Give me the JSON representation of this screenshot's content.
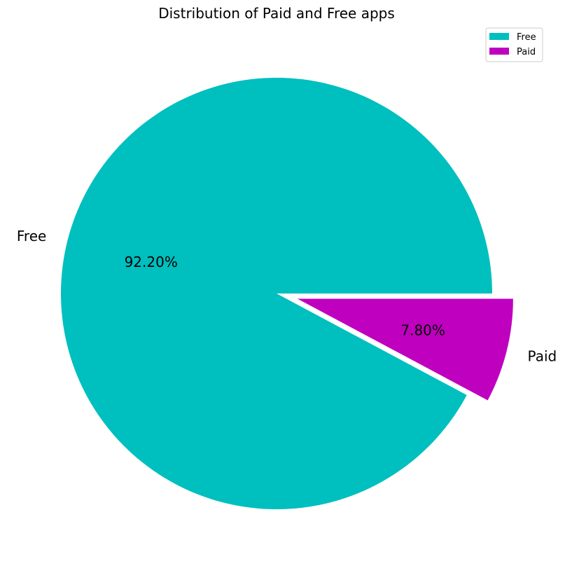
{
  "chart_data": {
    "type": "pie",
    "title": "Distribution of Paid and Free apps",
    "labels": [
      "Free",
      "Paid"
    ],
    "values": [
      92.2,
      7.8
    ],
    "pct_labels": [
      "92.20%",
      "7.80%"
    ],
    "explode": [
      0,
      0.1
    ],
    "colors": [
      "#00bfbf",
      "#bf00bf"
    ],
    "start_angle_deg": 0,
    "counterclockwise": true,
    "legend": {
      "position": "top-right",
      "entries": [
        "Free",
        "Paid"
      ]
    }
  }
}
